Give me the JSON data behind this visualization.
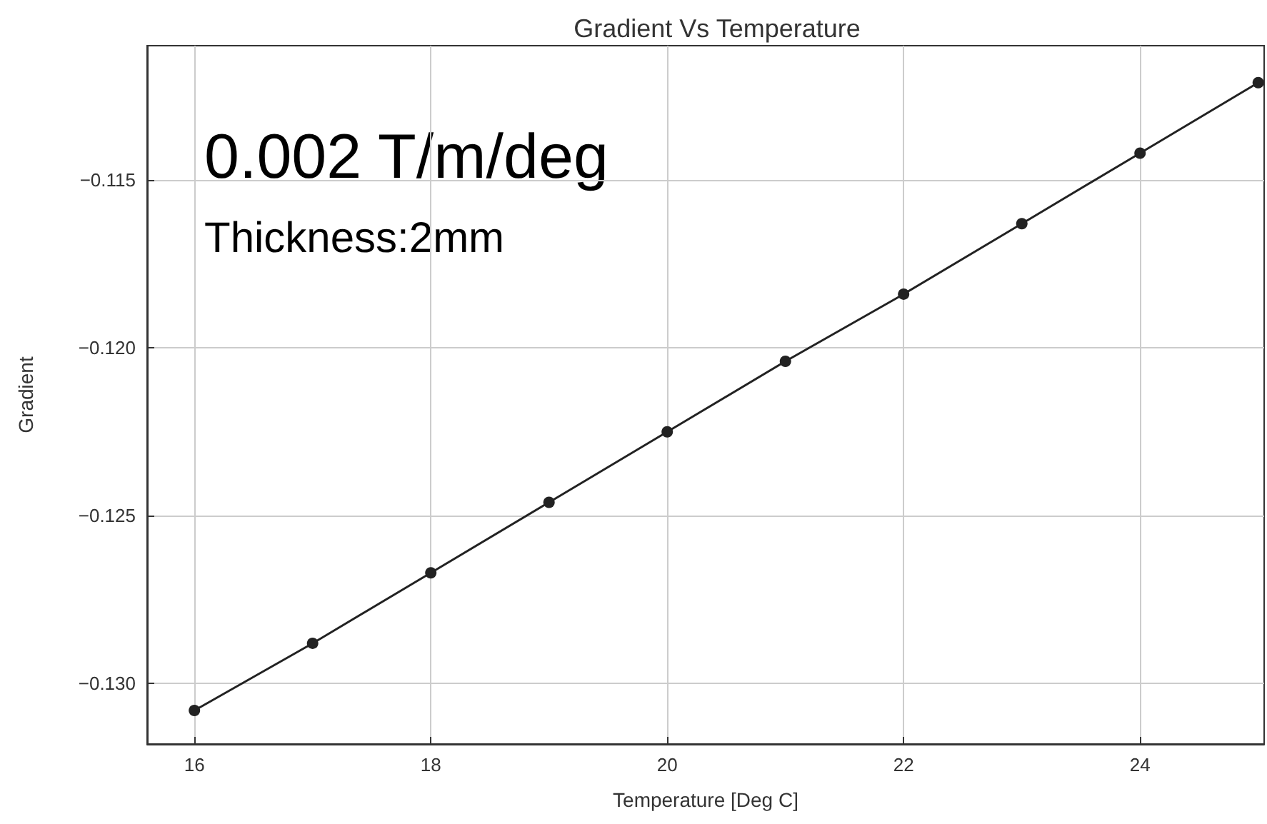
{
  "chart_data": {
    "type": "line",
    "title": "Gradient Vs Temperature",
    "xlabel": "Temperature [Deg C]",
    "ylabel": "Gradient",
    "annotations": [
      "0.002 T/m/deg",
      "Thickness:2mm"
    ],
    "x": [
      16,
      17,
      18,
      19,
      20,
      21,
      22,
      23,
      24,
      25
    ],
    "series": [
      {
        "color": "#222222",
        "values": [
          -0.1308,
          -0.1288,
          -0.1267,
          -0.1246,
          -0.1225,
          -0.1204,
          -0.1184,
          -0.1163,
          -0.1142,
          -0.1121
        ]
      }
    ],
    "xlim": [
      15.6,
      25.05
    ],
    "xticks": [
      16,
      18,
      20,
      22,
      24
    ],
    "ylim": [
      -0.1318,
      -0.111
    ],
    "yticks": [
      {
        "value": -0.13,
        "label": "−0.130"
      },
      {
        "value": -0.125,
        "label": "−0.125"
      },
      {
        "value": -0.12,
        "label": "−0.120"
      },
      {
        "value": -0.115,
        "label": "−0.115"
      }
    ],
    "grid": true,
    "marker": "circle",
    "line_style": "solid"
  }
}
